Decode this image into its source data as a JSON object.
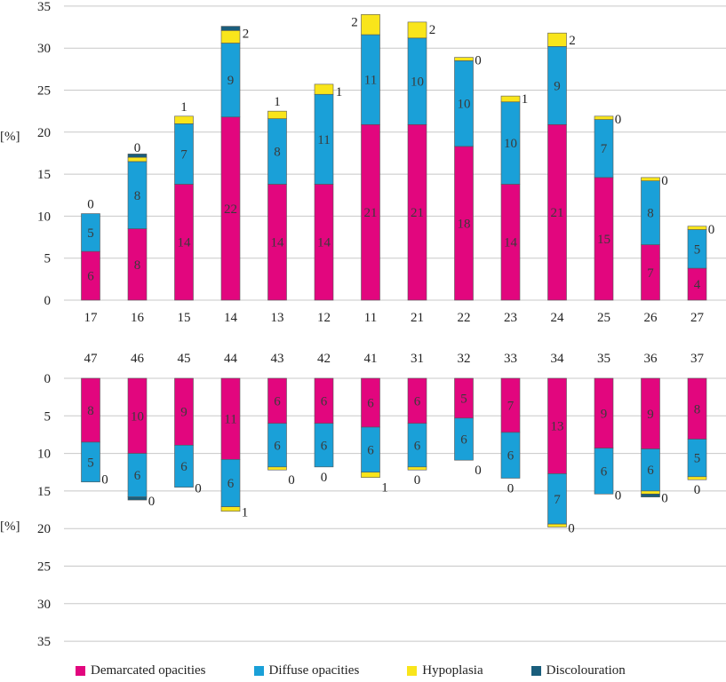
{
  "chart_data": [
    {
      "type": "bar",
      "stacked": true,
      "ylabel": "[%]",
      "ylim": [
        0,
        35
      ],
      "yticks": [
        0,
        5,
        10,
        15,
        20,
        25,
        30,
        35
      ],
      "categories": [
        "17",
        "16",
        "15",
        "14",
        "13",
        "12",
        "11",
        "21",
        "22",
        "23",
        "24",
        "25",
        "26",
        "27"
      ],
      "series": [
        {
          "name": "Demarcated opacities",
          "values": [
            5.8,
            8.5,
            13.8,
            21.8,
            13.8,
            13.8,
            20.9,
            20.9,
            18.3,
            13.8,
            20.9,
            14.6,
            6.6,
            3.8
          ],
          "labels": [
            "6",
            "8",
            "14",
            "22",
            "14",
            "14",
            "21",
            "21",
            "18",
            "14",
            "21",
            "15",
            "7",
            "4"
          ]
        },
        {
          "name": "Diffuse opacities",
          "values": [
            4.5,
            8.0,
            7.2,
            8.8,
            7.8,
            10.7,
            10.7,
            10.3,
            10.2,
            9.8,
            9.3,
            6.9,
            7.6,
            4.6
          ],
          "labels": [
            "5",
            "8",
            "7",
            "9",
            "8",
            "11",
            "11",
            "10",
            "10",
            "10",
            "9",
            "7",
            "8",
            "5"
          ]
        },
        {
          "name": "Hypoplasia",
          "values": [
            0,
            0.5,
            0.9,
            1.5,
            0.9,
            1.2,
            2.4,
            1.9,
            0.4,
            0.7,
            1.6,
            0.4,
            0.4,
            0.4
          ],
          "labels": [
            "0",
            "0",
            "1",
            "2",
            "1",
            "1",
            "2",
            "2",
            "0",
            "1",
            "2",
            "0",
            "0",
            "0"
          ]
        },
        {
          "name": "Discolouration",
          "values": [
            0,
            0.4,
            0,
            0.5,
            0,
            0,
            0,
            0,
            0,
            0,
            0,
            0,
            0,
            0
          ]
        }
      ]
    },
    {
      "type": "bar",
      "stacked": true,
      "ylabel": "[%]",
      "ylim": [
        0,
        35
      ],
      "yticks": [
        0,
        5,
        10,
        15,
        20,
        25,
        30,
        35
      ],
      "inverted": true,
      "categories": [
        "47",
        "46",
        "45",
        "44",
        "43",
        "42",
        "41",
        "31",
        "32",
        "33",
        "34",
        "35",
        "36",
        "37"
      ],
      "series": [
        {
          "name": "Demarcated opacities",
          "values": [
            8.5,
            10.0,
            8.9,
            10.8,
            6.0,
            6.0,
            6.5,
            6.0,
            5.3,
            7.2,
            12.7,
            9.3,
            9.4,
            8.1
          ],
          "labels": [
            "8",
            "10",
            "9",
            "11",
            "6",
            "6",
            "6",
            "6",
            "5",
            "7",
            "13",
            "9",
            "9",
            "8"
          ]
        },
        {
          "name": "Diffuse opacities",
          "values": [
            5.3,
            5.8,
            5.6,
            6.3,
            5.8,
            5.8,
            6.0,
            5.8,
            5.6,
            6.1,
            6.7,
            6.1,
            5.6,
            5.0
          ],
          "labels": [
            "5",
            "6",
            "6",
            "6",
            "6",
            "6",
            "6",
            "6",
            "6",
            "6",
            "7",
            "6",
            "6",
            "5"
          ]
        },
        {
          "name": "Hypoplasia",
          "values": [
            0,
            0,
            0,
            0.6,
            0.4,
            0,
            0.7,
            0.4,
            0,
            0,
            0.4,
            0,
            0.4,
            0.4
          ],
          "labels": [
            "0",
            "0",
            "0",
            "1",
            "0",
            "0",
            "1",
            "0",
            "0",
            "0",
            "0",
            "0",
            "0",
            "0"
          ]
        },
        {
          "name": "Discolouration",
          "values": [
            0,
            0.4,
            0,
            0,
            0,
            0,
            0,
            0,
            0,
            0,
            0,
            0,
            0.4,
            0
          ]
        }
      ]
    }
  ],
  "colors": {
    "Demarcated opacities": "#e2067e",
    "Diffuse opacities": "#1aa0d8",
    "Hypoplasia": "#f9e51b",
    "Discolouration": "#1a5e7c",
    "grid": "#c8c8c8",
    "text": "#222222",
    "label_on_bar": "#3a3a3a"
  },
  "legend": [
    "Demarcated opacities",
    "Diffuse opacities",
    "Hypoplasia",
    "Discolouration"
  ]
}
